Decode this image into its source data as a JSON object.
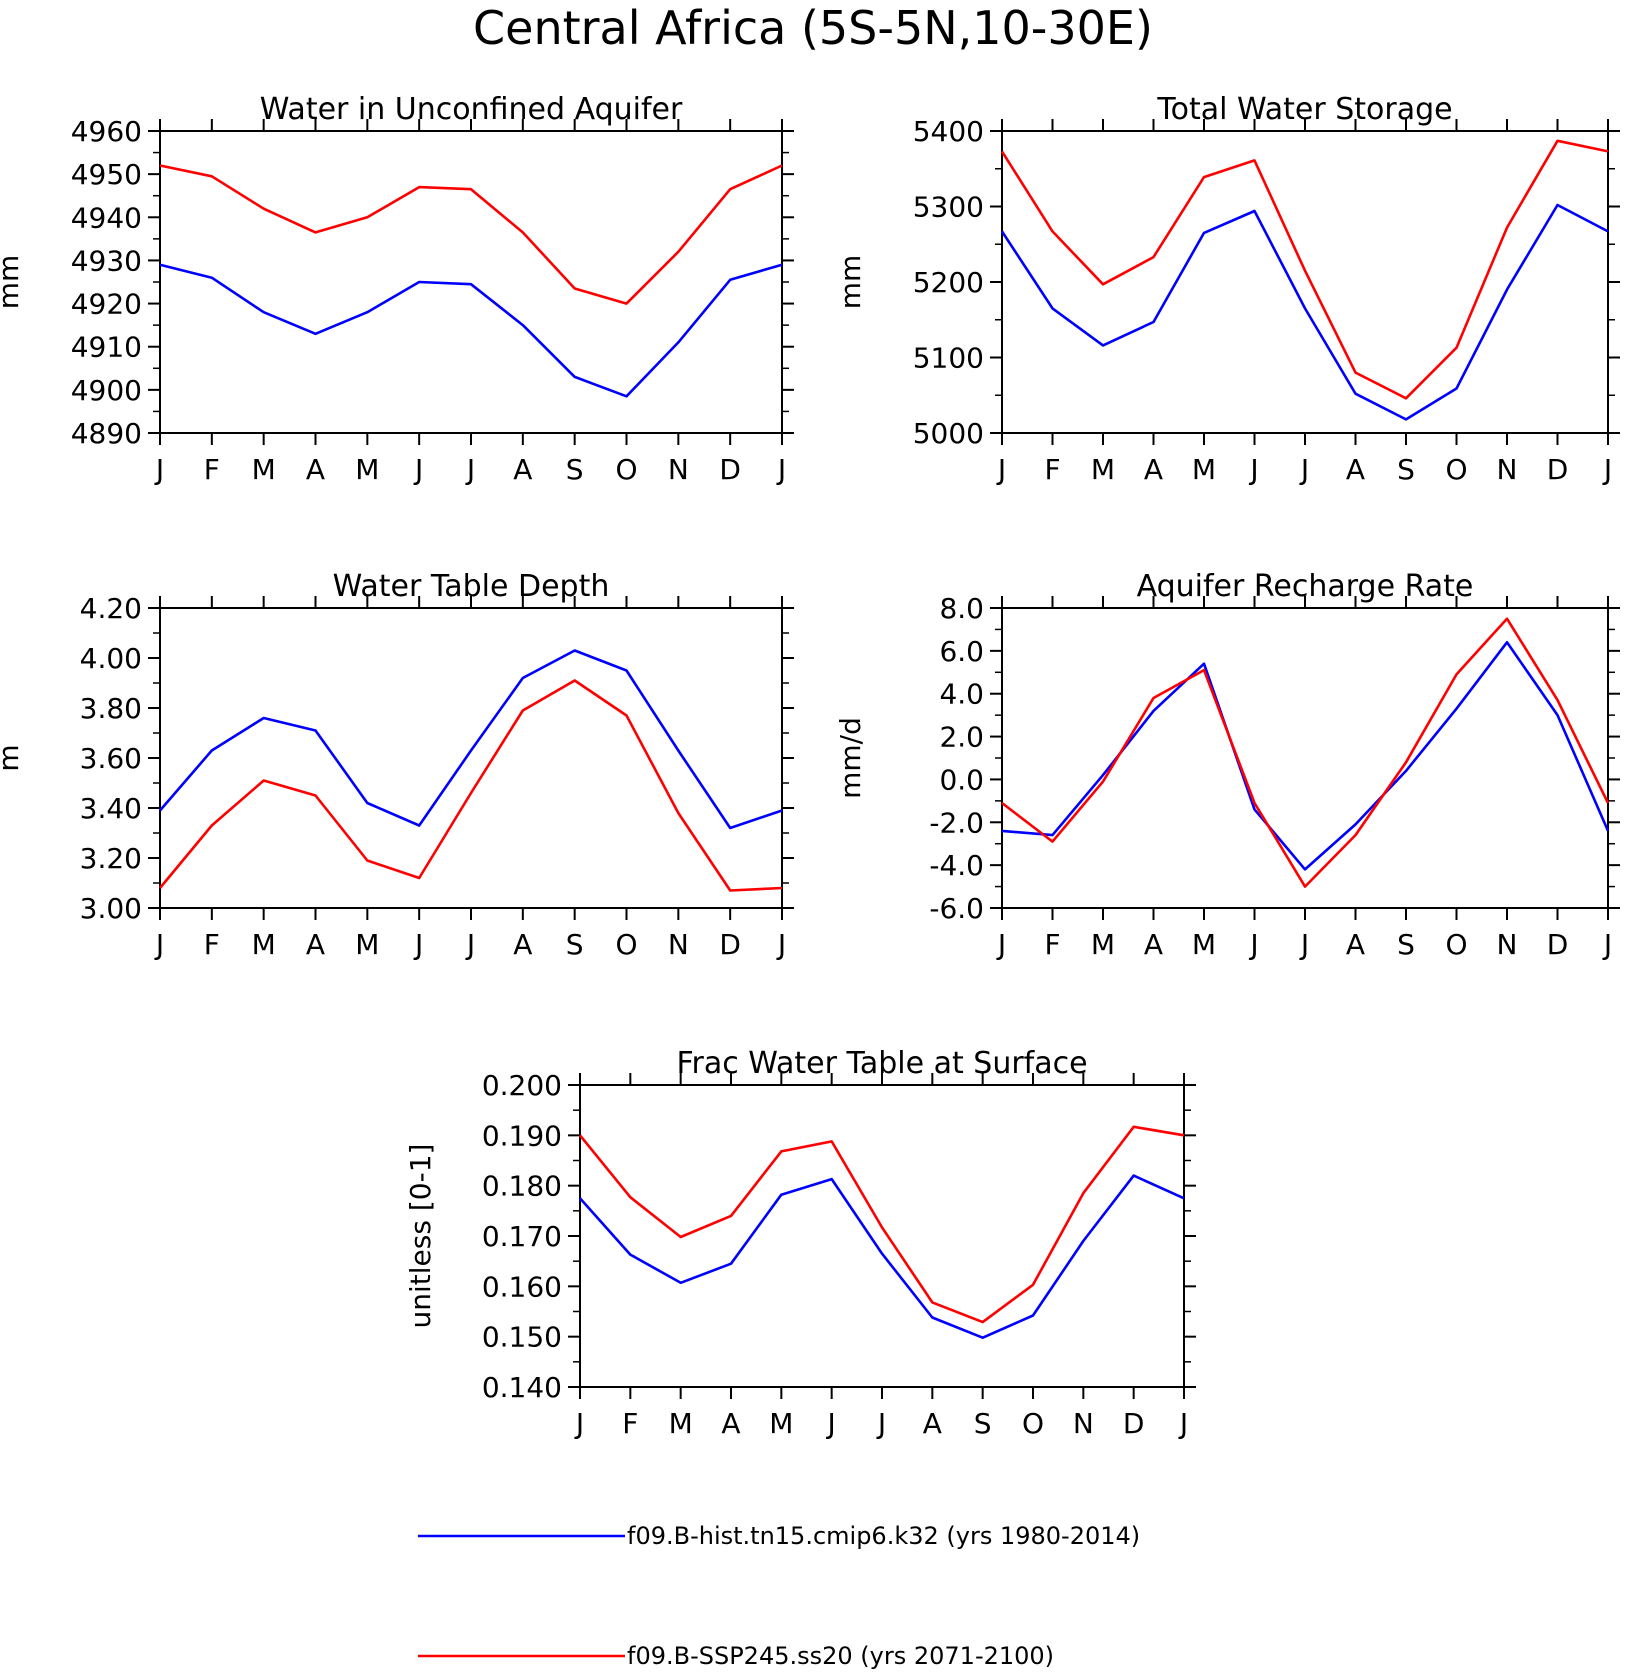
{
  "figure": {
    "title": "Central Africa (5S-5N,10-30E)",
    "colors": {
      "hist": "#0000ff",
      "ssp": "#ff0000",
      "axis": "#000000"
    },
    "months": [
      "J",
      "F",
      "M",
      "A",
      "M",
      "J",
      "J",
      "A",
      "S",
      "O",
      "N",
      "D",
      "J"
    ]
  },
  "legend": {
    "position": "bottom-center",
    "entries": [
      {
        "label": "f09.B-hist.tn15.cmip6.k32 (yrs 1980-2014)",
        "color": "#0000ff"
      },
      {
        "label": "f09.B-SSP245.ss20 (yrs 2071-2100)",
        "color": "#ff0000"
      }
    ]
  },
  "chart_data": [
    {
      "type": "line",
      "title": "Water in Unconfined Aquifer",
      "ylabel": "mm",
      "ylim": [
        4890,
        4960
      ],
      "yticks": [
        "4890",
        "4900",
        "4910",
        "4920",
        "4930",
        "4940",
        "4950",
        "4960"
      ],
      "categories": [
        "J",
        "F",
        "M",
        "A",
        "M",
        "J",
        "J",
        "A",
        "S",
        "O",
        "N",
        "D",
        "J"
      ],
      "series": [
        {
          "name": "f09.B-hist.tn15.cmip6.k32 (yrs 1980-2014)",
          "color": "#0000ff",
          "values": [
            4929,
            4926,
            4918,
            4913,
            4918,
            4925,
            4924.5,
            4915,
            4903,
            4898.5,
            4911,
            4925.5,
            4929
          ]
        },
        {
          "name": "f09.B-SSP245.ss20 (yrs 2071-2100)",
          "color": "#ff0000",
          "values": [
            4952,
            4949.5,
            4942,
            4936.5,
            4940,
            4947,
            4946.5,
            4936.5,
            4923.5,
            4920,
            4932,
            4946.5,
            4952
          ]
        }
      ]
    },
    {
      "type": "line",
      "title": "Total Water Storage",
      "ylabel": "mm",
      "ylim": [
        5000,
        5400
      ],
      "yticks": [
        "5000",
        "5100",
        "5200",
        "5300",
        "5400"
      ],
      "categories": [
        "J",
        "F",
        "M",
        "A",
        "M",
        "J",
        "J",
        "A",
        "S",
        "O",
        "N",
        "D",
        "J"
      ],
      "series": [
        {
          "name": "f09.B-hist.tn15.cmip6.k32 (yrs 1980-2014)",
          "color": "#0000ff",
          "values": [
            5267,
            5165,
            5116,
            5147,
            5265,
            5294,
            5165,
            5052,
            5018,
            5059,
            5190,
            5302,
            5267
          ]
        },
        {
          "name": "f09.B-SSP245.ss20 (yrs 2071-2100)",
          "color": "#ff0000",
          "values": [
            5373,
            5267,
            5197,
            5233,
            5339,
            5361,
            5215,
            5080,
            5046,
            5113,
            5272,
            5387,
            5373
          ]
        }
      ]
    },
    {
      "type": "line",
      "title": "Water Table Depth",
      "ylabel": "m",
      "ylim": [
        3.0,
        4.2
      ],
      "yticks": [
        "3.00",
        "3.20",
        "3.40",
        "3.60",
        "3.80",
        "4.00",
        "4.20"
      ],
      "categories": [
        "J",
        "F",
        "M",
        "A",
        "M",
        "J",
        "J",
        "A",
        "S",
        "O",
        "N",
        "D",
        "J"
      ],
      "series": [
        {
          "name": "f09.B-hist.tn15.cmip6.k32 (yrs 1980-2014)",
          "color": "#0000ff",
          "values": [
            3.39,
            3.63,
            3.76,
            3.71,
            3.42,
            3.33,
            3.63,
            3.92,
            4.03,
            3.95,
            3.63,
            3.32,
            3.39
          ]
        },
        {
          "name": "f09.B-SSP245.ss20 (yrs 2071-2100)",
          "color": "#ff0000",
          "values": [
            3.08,
            3.33,
            3.51,
            3.45,
            3.19,
            3.12,
            3.46,
            3.79,
            3.91,
            3.77,
            3.38,
            3.07,
            3.08
          ]
        }
      ]
    },
    {
      "type": "line",
      "title": "Aquifer Recharge Rate",
      "ylabel": "mm/d",
      "ylim": [
        -6.0,
        8.0
      ],
      "yticks": [
        "-6.0",
        "-4.0",
        "-2.0",
        "0.0",
        "2.0",
        "4.0",
        "6.0",
        "8.0"
      ],
      "categories": [
        "J",
        "F",
        "M",
        "A",
        "M",
        "J",
        "J",
        "A",
        "S",
        "O",
        "N",
        "D",
        "J"
      ],
      "series": [
        {
          "name": "f09.B-hist.tn15.cmip6.k32 (yrs 1980-2014)",
          "color": "#0000ff",
          "values": [
            -2.4,
            -2.6,
            0.2,
            3.2,
            5.4,
            -1.4,
            -4.2,
            -2.1,
            0.4,
            3.3,
            6.4,
            3.0,
            -2.4
          ]
        },
        {
          "name": "f09.B-SSP245.ss20 (yrs 2071-2100)",
          "color": "#ff0000",
          "values": [
            -1.1,
            -2.9,
            -0.1,
            3.8,
            5.1,
            -1.1,
            -5.0,
            -2.6,
            0.8,
            4.9,
            7.5,
            3.7,
            -1.1
          ]
        }
      ]
    },
    {
      "type": "line",
      "title": "Frac Water Table at Surface",
      "ylabel": "unitless [0-1]",
      "ylim": [
        0.14,
        0.2
      ],
      "yticks": [
        "0.140",
        "0.150",
        "0.160",
        "0.170",
        "0.180",
        "0.190",
        "0.200"
      ],
      "categories": [
        "J",
        "F",
        "M",
        "A",
        "M",
        "J",
        "J",
        "A",
        "S",
        "O",
        "N",
        "D",
        "J"
      ],
      "series": [
        {
          "name": "f09.B-hist.tn15.cmip6.k32 (yrs 1980-2014)",
          "color": "#0000ff",
          "values": [
            0.1775,
            0.1663,
            0.1607,
            0.1645,
            0.1782,
            0.1813,
            0.1665,
            0.1538,
            0.1498,
            0.1542,
            0.169,
            0.182,
            0.1775
          ]
        },
        {
          "name": "f09.B-SSP245.ss20 (yrs 2071-2100)",
          "color": "#ff0000",
          "values": [
            0.19,
            0.1777,
            0.1698,
            0.174,
            0.1868,
            0.1888,
            0.1717,
            0.1568,
            0.1529,
            0.1603,
            0.1785,
            0.1917,
            0.19
          ]
        }
      ]
    }
  ]
}
